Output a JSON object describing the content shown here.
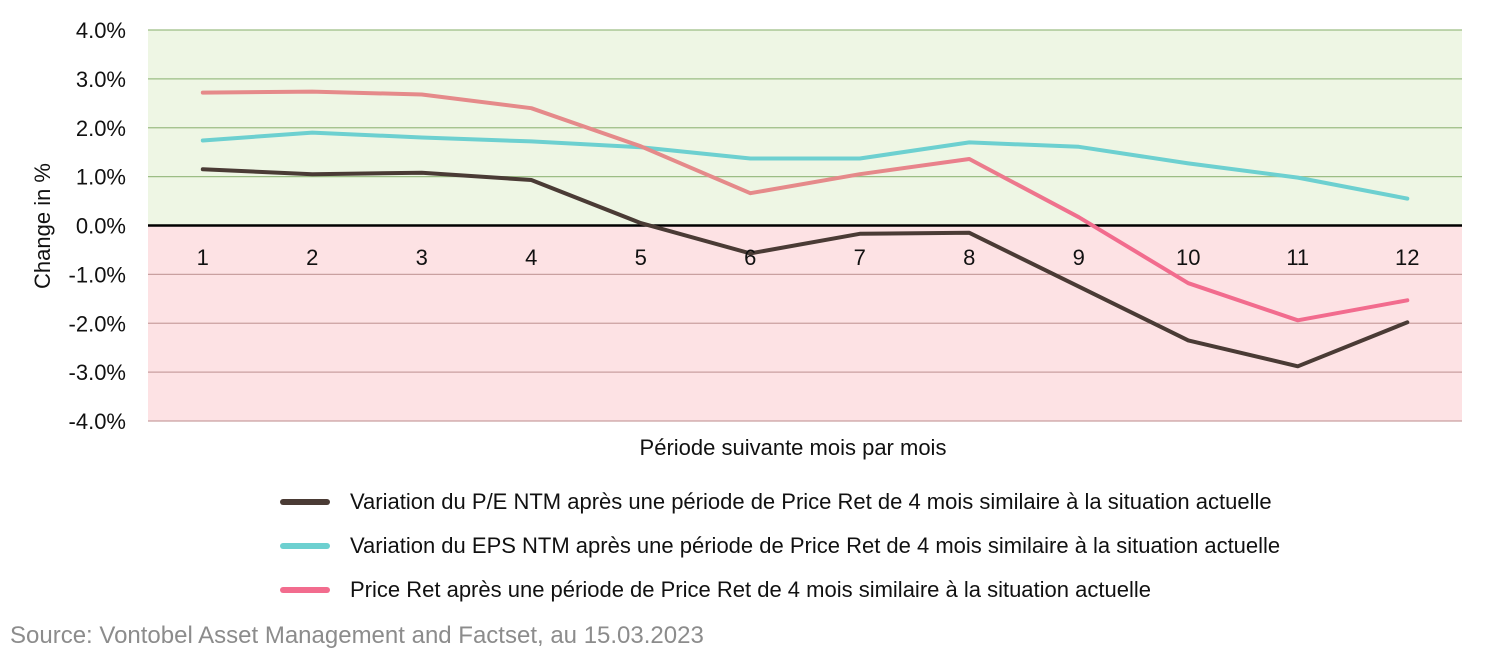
{
  "chart_data": {
    "type": "line",
    "xlabel": "Période suivante mois par mois",
    "ylabel": "Change in %",
    "categories": [
      "1",
      "2",
      "3",
      "4",
      "5",
      "6",
      "7",
      "8",
      "9",
      "10",
      "11",
      "12"
    ],
    "ylim": [
      -4.0,
      4.0
    ],
    "yticks": [
      "4.0%",
      "3.0%",
      "2.0%",
      "1.0%",
      "0.0%",
      "-1.0%",
      "-2.0%",
      "-3.0%",
      "-4.0%"
    ],
    "ytick_values": [
      4,
      3,
      2,
      1,
      0,
      -1,
      -2,
      -3,
      -4
    ],
    "grid": true,
    "background_bands": {
      "positive": "#eef6e4",
      "negative": "#fde2e4"
    },
    "legend_position": "bottom",
    "series": [
      {
        "name": "Variation du P/E NTM après une période de Price Ret de 4 mois similaire à la situation actuelle",
        "color": "#4a3b35",
        "values": [
          1.15,
          1.05,
          1.08,
          0.93,
          0.05,
          -0.57,
          -0.17,
          -0.15,
          -1.25,
          -2.35,
          -2.88,
          -1.98
        ]
      },
      {
        "name": "Variation du EPS NTM après une période de Price Ret de 4 mois similaire à la situation actuelle",
        "color": "#6dd0d0",
        "values": [
          1.74,
          1.9,
          1.8,
          1.72,
          1.6,
          1.37,
          1.37,
          1.7,
          1.61,
          1.27,
          0.98,
          0.55
        ]
      },
      {
        "name": "Price Ret après une période de Price Ret de 4 mois similaire à la situation actuelle",
        "color_start": "#e58a8a",
        "color_end": "#f26c8e",
        "color": "#f26c8e",
        "values": [
          2.72,
          2.74,
          2.68,
          2.4,
          1.62,
          0.66,
          1.05,
          1.36,
          0.17,
          -1.18,
          -1.94,
          -1.53
        ]
      }
    ]
  },
  "source": "Source: Vontobel Asset Management and Factset, au 15.03.2023"
}
